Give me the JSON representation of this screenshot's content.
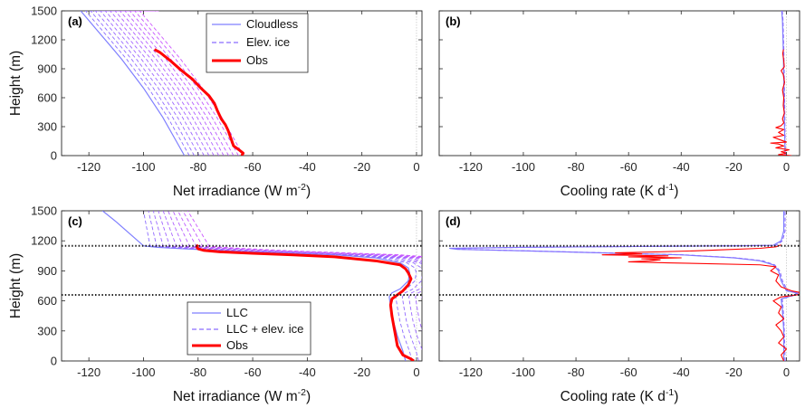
{
  "colors": {
    "cloudless": "#7f7fff",
    "ice_a": "#8a6cff",
    "ice_b": "#cc55ff",
    "obs": "#ff0000",
    "ref_line": "#c8c8c8",
    "cloud_boundary": "#222222"
  },
  "chart_data": [
    {
      "id": "a",
      "type": "line",
      "panel_label": "(a)",
      "xlabel_main": "Net irradiance (W m",
      "xlabel_sup": "-2",
      "xlabel_end": ")",
      "ylabel": "Height (m)",
      "xlim": [
        -130,
        2
      ],
      "ylim": [
        0,
        1500
      ],
      "xticks": [
        "-120",
        "-100",
        "-80",
        "-60",
        "-40",
        "-20",
        "0"
      ],
      "yticks": [
        "0",
        "300",
        "600",
        "900",
        "1200",
        "1500"
      ],
      "xtick_values": [
        -120,
        -100,
        -80,
        -60,
        -40,
        -20,
        0
      ],
      "ytick_values": [
        0,
        300,
        600,
        900,
        1200,
        1500
      ],
      "legend": {
        "position": "top-right",
        "entries": [
          "Cloudless",
          "Elev. ice",
          "Obs"
        ]
      },
      "series": [
        {
          "name": "Cloudless",
          "style": "solid",
          "points": [
            [
              -85,
              0
            ],
            [
              -88,
              150
            ],
            [
              -93,
              400
            ],
            [
              -100,
              700
            ],
            [
              -108,
              1000
            ],
            [
              -117,
              1300
            ],
            [
              -123,
              1500
            ]
          ]
        },
        {
          "name": "Elev. ice",
          "style": "dashed",
          "family": {
            "count": 12,
            "offset_step": 1.8,
            "top_x_start": -101,
            "top_x_step": 0.6,
            "break_y": 1500
          }
        },
        {
          "name": "Obs",
          "style": "solid-thick",
          "points": [
            [
              -64,
              0
            ],
            [
              -63.5,
              25
            ],
            [
              -65,
              60
            ],
            [
              -67,
              100
            ],
            [
              -68,
              180
            ],
            [
              -69,
              260
            ],
            [
              -70,
              320
            ],
            [
              -71.5,
              380
            ],
            [
              -73,
              470
            ],
            [
              -74,
              540
            ],
            [
              -76,
              620
            ],
            [
              -79,
              700
            ],
            [
              -82,
              790
            ],
            [
              -86,
              880
            ],
            [
              -90,
              980
            ],
            [
              -94,
              1070
            ],
            [
              -96,
              1100
            ]
          ]
        }
      ]
    },
    {
      "id": "b",
      "type": "line",
      "panel_label": "(b)",
      "xlabel_main": "Cooling rate (K d",
      "xlabel_sup": "-1",
      "xlabel_end": ")",
      "xlim": [
        -132,
        5
      ],
      "ylim": [
        0,
        1500
      ],
      "xticks": [
        "-120",
        "-100",
        "-80",
        "-60",
        "-40",
        "-20",
        "0"
      ],
      "yticks": [],
      "xtick_values": [
        -120,
        -100,
        -80,
        -60,
        -40,
        -20,
        0
      ],
      "ytick_values": [
        0,
        300,
        600,
        900,
        1200,
        1500
      ],
      "series": [
        {
          "name": "Cloudless",
          "style": "solid",
          "points": [
            [
              -0.5,
              0
            ],
            [
              -0.8,
              400
            ],
            [
              -1,
              800
            ],
            [
              -1.2,
              1100
            ],
            [
              -1.5,
              1400
            ],
            [
              -1.8,
              1500
            ]
          ]
        },
        {
          "name": "Elev. ice",
          "style": "dashed",
          "points": [
            [
              -0.4,
              0
            ],
            [
              -0.6,
              400
            ],
            [
              -0.8,
              800
            ],
            [
              -1.0,
              1100
            ],
            [
              -1.3,
              1400
            ],
            [
              -1.6,
              1500
            ]
          ]
        },
        {
          "name": "Obs",
          "style": "solid-thin",
          "points": [
            [
              2,
              0
            ],
            [
              -3,
              10
            ],
            [
              0,
              25
            ],
            [
              -2,
              40
            ],
            [
              1,
              60
            ],
            [
              -4,
              80
            ],
            [
              -1,
              100
            ],
            [
              -3,
              120
            ],
            [
              -6,
              130
            ],
            [
              0,
              140
            ],
            [
              -2,
              160
            ],
            [
              -5,
              190
            ],
            [
              -1,
              210
            ],
            [
              -3,
              240
            ],
            [
              -1,
              270
            ],
            [
              -4,
              290
            ],
            [
              -2,
              310
            ],
            [
              -1,
              340
            ],
            [
              -1.5,
              380
            ],
            [
              -0.8,
              440
            ],
            [
              -1.2,
              520
            ],
            [
              -1,
              600
            ],
            [
              -1.5,
              680
            ],
            [
              -0.7,
              760
            ],
            [
              -1.2,
              840
            ],
            [
              -2,
              880
            ],
            [
              -0.8,
              920
            ],
            [
              -1,
              980
            ],
            [
              -1.4,
              1060
            ],
            [
              -1.1,
              1100
            ]
          ]
        }
      ]
    },
    {
      "id": "c",
      "type": "line",
      "panel_label": "(c)",
      "xlabel_main": "Net irradiance (W m",
      "xlabel_sup": "-2",
      "xlabel_end": ")",
      "ylabel": "Height (m)",
      "xlim": [
        -130,
        2
      ],
      "ylim": [
        0,
        1500
      ],
      "xticks": [
        "-120",
        "-100",
        "-80",
        "-60",
        "-40",
        "-20",
        "0"
      ],
      "yticks": [
        "0",
        "300",
        "600",
        "900",
        "1200",
        "1500"
      ],
      "xtick_values": [
        -120,
        -100,
        -80,
        -60,
        -40,
        -20,
        0
      ],
      "ytick_values": [
        0,
        300,
        600,
        900,
        1200,
        1500
      ],
      "cloud_boundaries": [
        1150,
        660
      ],
      "legend": {
        "position": "lower-left",
        "entries": [
          "LLC",
          "LLC + elev. ice"
        ],
        "extra": "Obs"
      },
      "series": [
        {
          "name": "LLC",
          "style": "solid",
          "points": [
            [
              -4,
              0
            ],
            [
              -5,
              100
            ],
            [
              -7,
              250
            ],
            [
              -8.5,
              400
            ],
            [
              -9.5,
              550
            ],
            [
              -10,
              640
            ],
            [
              -9,
              680
            ],
            [
              -6,
              720
            ],
            [
              -3,
              800
            ],
            [
              -2.5,
              880
            ],
            [
              -3,
              930
            ],
            [
              -6,
              980
            ],
            [
              -15,
              1030
            ],
            [
              -30,
              1060
            ],
            [
              -50,
              1080
            ],
            [
              -70,
              1100
            ],
            [
              -85,
              1120
            ],
            [
              -95,
              1135
            ],
            [
              -100,
              1150
            ],
            [
              -105,
              1270
            ],
            [
              -110,
              1390
            ],
            [
              -115,
              1500
            ]
          ]
        },
        {
          "name": "LLC + elev. ice",
          "style": "dashed",
          "family": {
            "count": 10,
            "offset_step": 2.4,
            "top_x_start": -100,
            "top_x_step": 1.8,
            "break_y": 1150
          }
        },
        {
          "name": "Obs",
          "style": "solid-thick",
          "points": [
            [
              -1,
              0
            ],
            [
              -2,
              20
            ],
            [
              -5,
              60
            ],
            [
              -7,
              150
            ],
            [
              -8,
              300
            ],
            [
              -9,
              450
            ],
            [
              -9.5,
              560
            ],
            [
              -9,
              620
            ],
            [
              -7,
              660
            ],
            [
              -5,
              700
            ],
            [
              -3,
              760
            ],
            [
              -2,
              820
            ],
            [
              -3,
              880
            ],
            [
              -4,
              920
            ],
            [
              -6,
              960
            ],
            [
              -15,
              1000
            ],
            [
              -30,
              1040
            ],
            [
              -45,
              1060
            ],
            [
              -60,
              1075
            ],
            [
              -72,
              1090
            ],
            [
              -78,
              1105
            ],
            [
              -80,
              1120
            ],
            [
              -80.5,
              1140
            ],
            [
              -80,
              1160
            ]
          ]
        }
      ]
    },
    {
      "id": "d",
      "type": "line",
      "panel_label": "(d)",
      "xlabel_main": "Cooling rate (K d",
      "xlabel_sup": "-1",
      "xlabel_end": ")",
      "xlim": [
        -132,
        5
      ],
      "ylim": [
        0,
        1500
      ],
      "xticks": [
        "-120",
        "-100",
        "-80",
        "-60",
        "-40",
        "-20",
        "0"
      ],
      "yticks": [],
      "xtick_values": [
        -120,
        -100,
        -80,
        -60,
        -40,
        -20,
        0
      ],
      "ytick_values": [
        0,
        300,
        600,
        900,
        1200,
        1500
      ],
      "cloud_boundaries": [
        1150,
        660
      ],
      "series": [
        {
          "name": "LLC",
          "style": "solid",
          "points": [
            [
              -1,
              0
            ],
            [
              -1,
              300
            ],
            [
              -1.5,
              500
            ],
            [
              -2,
              620
            ],
            [
              3,
              660
            ],
            [
              4,
              680
            ],
            [
              0,
              700
            ],
            [
              -2,
              800
            ],
            [
              -3,
              900
            ],
            [
              -5,
              960
            ],
            [
              -10,
              1000
            ],
            [
              -20,
              1030
            ],
            [
              -40,
              1060
            ],
            [
              -70,
              1080
            ],
            [
              -100,
              1100
            ],
            [
              -125,
              1115
            ],
            [
              -128,
              1125
            ],
            [
              -100,
              1135
            ],
            [
              -50,
              1145
            ],
            [
              -20,
              1150
            ],
            [
              -5,
              1155
            ],
            [
              -2,
              1200
            ],
            [
              -1,
              1300
            ],
            [
              -1,
              1500
            ]
          ]
        },
        {
          "name": "LLC + elev. ice",
          "style": "dashed",
          "points": [
            [
              -0.5,
              0
            ],
            [
              -0.8,
              300
            ],
            [
              -1.2,
              500
            ],
            [
              -1.6,
              620
            ],
            [
              3.5,
              660
            ],
            [
              4.5,
              680
            ],
            [
              0.5,
              700
            ],
            [
              -1.5,
              800
            ],
            [
              -2.5,
              900
            ],
            [
              -4.5,
              960
            ],
            [
              -9,
              1000
            ],
            [
              -19,
              1030
            ],
            [
              -39,
              1060
            ],
            [
              -69,
              1080
            ],
            [
              -99,
              1100
            ],
            [
              -124,
              1115
            ],
            [
              -127,
              1125
            ],
            [
              -99,
              1135
            ],
            [
              -49,
              1145
            ],
            [
              -19,
              1150
            ],
            [
              -4,
              1155
            ],
            [
              -1.5,
              1200
            ],
            [
              -0.5,
              1300
            ],
            [
              -0.5,
              1500
            ]
          ]
        },
        {
          "name": "Obs",
          "style": "solid-thin",
          "points": [
            [
              -1,
              0
            ],
            [
              -2,
              60
            ],
            [
              0,
              120
            ],
            [
              -3,
              180
            ],
            [
              -1,
              240
            ],
            [
              -2,
              300
            ],
            [
              -4,
              360
            ],
            [
              -1,
              420
            ],
            [
              -3,
              480
            ],
            [
              -2,
              540
            ],
            [
              -5,
              600
            ],
            [
              -2,
              640
            ],
            [
              4,
              660
            ],
            [
              6,
              680
            ],
            [
              2,
              700
            ],
            [
              -2,
              740
            ],
            [
              -4,
              800
            ],
            [
              -3,
              860
            ],
            [
              -6,
              900
            ],
            [
              -4,
              940
            ],
            [
              -10,
              960
            ],
            [
              -45,
              980
            ],
            [
              -60,
              990
            ],
            [
              -52,
              1000
            ],
            [
              -48,
              1010
            ],
            [
              -55,
              1020
            ],
            [
              -40,
              1030
            ],
            [
              -60,
              1040
            ],
            [
              -45,
              1050
            ],
            [
              -70,
              1060
            ],
            [
              -55,
              1070
            ],
            [
              -65,
              1080
            ],
            [
              -48,
              1090
            ],
            [
              -35,
              1100
            ],
            [
              -25,
              1110
            ],
            [
              -10,
              1125
            ],
            [
              -4,
              1140
            ],
            [
              -3,
              1150
            ],
            [
              -2,
              1160
            ]
          ]
        }
      ]
    }
  ]
}
